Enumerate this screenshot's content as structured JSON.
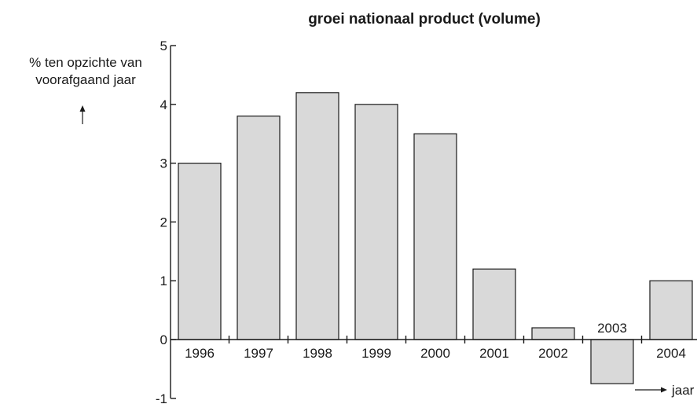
{
  "chart_data": {
    "type": "bar",
    "title": "groei nationaal product (volume)",
    "ylabel_line1": "% ten opzichte van",
    "ylabel_line2": "voorafgaand jaar",
    "xlabel": "jaar",
    "categories": [
      "1996",
      "1997",
      "1998",
      "1999",
      "2000",
      "2001",
      "2002",
      "2003",
      "2004"
    ],
    "values": [
      3.0,
      3.8,
      4.2,
      4.0,
      3.5,
      1.2,
      0.2,
      -0.75,
      1.0
    ],
    "yticks": [
      "-1",
      "0",
      "1",
      "2",
      "3",
      "4",
      "5"
    ],
    "ylim": [
      -1,
      5
    ],
    "grid": false,
    "bar_color": "#d9d9d9",
    "line_color": "#1a1a1a"
  }
}
